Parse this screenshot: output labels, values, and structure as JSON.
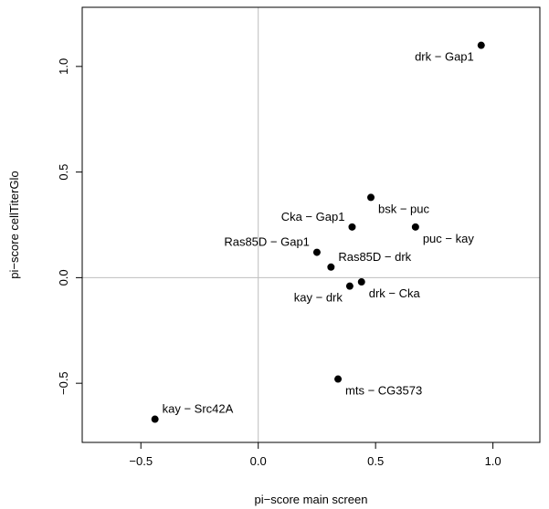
{
  "chart_data": {
    "type": "scatter",
    "xlabel": "pi−score main screen",
    "ylabel": "pi−score cellTiterGlo",
    "xlim": [
      -0.75,
      1.2
    ],
    "ylim": [
      -0.78,
      1.28
    ],
    "x_ticks": [
      "−0.5",
      "0.0",
      "0.5",
      "1.0"
    ],
    "x_tick_values": [
      -0.5,
      0.0,
      0.5,
      1.0
    ],
    "y_ticks": [
      "−0.5",
      "0.0",
      "0.5",
      "1.0"
    ],
    "y_tick_values": [
      -0.5,
      0.0,
      0.5,
      1.0
    ],
    "reference_lines": {
      "x": 0,
      "y": 0,
      "color": "#bebebe"
    },
    "grid": false,
    "point_color": "#000000",
    "points": [
      {
        "label": "drk − Gap1",
        "x": 0.95,
        "y": 1.1,
        "label_pos": "below-left"
      },
      {
        "label": "bsk − puc",
        "x": 0.48,
        "y": 0.38,
        "label_pos": "below-right"
      },
      {
        "label": "Cka − Gap1",
        "x": 0.4,
        "y": 0.24,
        "label_pos": "above-left"
      },
      {
        "label": "puc − kay",
        "x": 0.67,
        "y": 0.24,
        "label_pos": "below-right"
      },
      {
        "label": "Ras85D − Gap1",
        "x": 0.25,
        "y": 0.12,
        "label_pos": "above-left"
      },
      {
        "label": "Ras85D − drk",
        "x": 0.31,
        "y": 0.05,
        "label_pos": "above-right"
      },
      {
        "label": "drk − Cka",
        "x": 0.44,
        "y": -0.02,
        "label_pos": "below-right"
      },
      {
        "label": "kay − drk",
        "x": 0.39,
        "y": -0.04,
        "label_pos": "below-left"
      },
      {
        "label": "mts − CG3573",
        "x": 0.34,
        "y": -0.48,
        "label_pos": "below-right"
      },
      {
        "label": "kay − Src42A",
        "x": -0.44,
        "y": -0.67,
        "label_pos": "above-right"
      }
    ]
  }
}
